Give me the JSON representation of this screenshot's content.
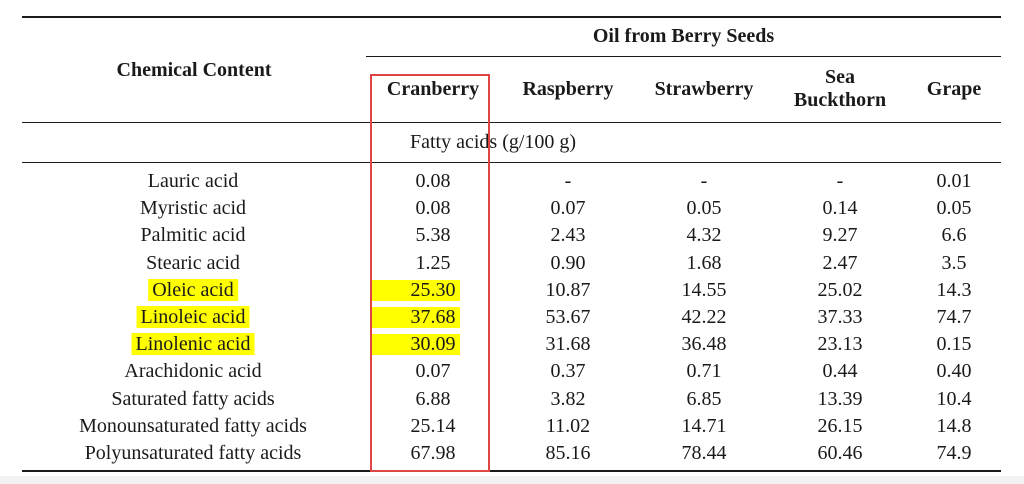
{
  "table": {
    "header": {
      "row_label": "Chemical Content",
      "group_label": "Oil from Berry Seeds",
      "columns": [
        "Cranberry",
        "Raspberry",
        "Strawberry",
        "Sea\nBuckthorn",
        "Grape"
      ]
    },
    "section_label": "Fatty acids (g/100 g)",
    "rows": [
      {
        "name": "Lauric acid",
        "highlighted": false,
        "values": [
          "0.08",
          "-",
          "-",
          "-",
          "0.01"
        ]
      },
      {
        "name": "Myristic acid",
        "highlighted": false,
        "values": [
          "0.08",
          "0.07",
          "0.05",
          "0.14",
          "0.05"
        ]
      },
      {
        "name": "Palmitic acid",
        "highlighted": false,
        "values": [
          "5.38",
          "2.43",
          "4.32",
          "9.27",
          "6.6"
        ]
      },
      {
        "name": "Stearic acid",
        "highlighted": false,
        "values": [
          "1.25",
          "0.90",
          "1.68",
          "2.47",
          "3.5"
        ]
      },
      {
        "name": "Oleic acid",
        "highlighted": true,
        "values": [
          "25.30",
          "10.87",
          "14.55",
          "25.02",
          "14.3"
        ]
      },
      {
        "name": "Linoleic acid",
        "highlighted": true,
        "values": [
          "37.68",
          "53.67",
          "42.22",
          "37.33",
          "74.7"
        ]
      },
      {
        "name": "Linolenic acid",
        "highlighted": true,
        "values": [
          "30.09",
          "31.68",
          "36.48",
          "23.13",
          "0.15"
        ]
      },
      {
        "name": "Arachidonic acid",
        "highlighted": false,
        "values": [
          "0.07",
          "0.37",
          "0.71",
          "0.44",
          "0.40"
        ]
      },
      {
        "name": "Saturated fatty acids",
        "highlighted": false,
        "values": [
          "6.88",
          "3.82",
          "6.85",
          "13.39",
          "10.4"
        ]
      },
      {
        "name": "Monounsaturated fatty acids",
        "highlighted": false,
        "values": [
          "25.14",
          "11.02",
          "14.71",
          "26.15",
          "14.8"
        ]
      },
      {
        "name": "Polyunsaturated fatty acids",
        "highlighted": false,
        "values": [
          "67.98",
          "85.16",
          "78.44",
          "60.46",
          "74.9"
        ]
      }
    ]
  },
  "colors": {
    "highlight": "#ffff00",
    "annotation_box": "#e04545",
    "rule": "#1a1a1a"
  },
  "annotation": {
    "highlighted_column": "Cranberry"
  }
}
